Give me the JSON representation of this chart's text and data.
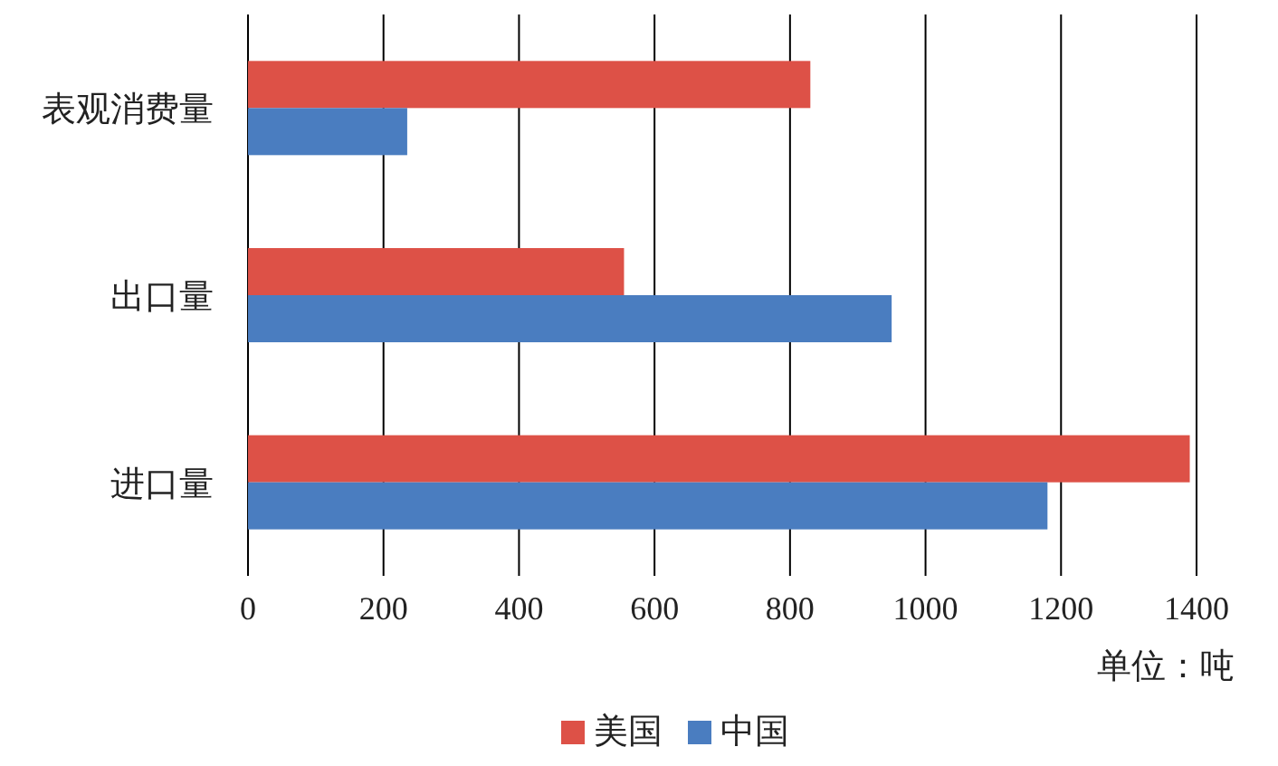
{
  "chart_data": {
    "type": "bar",
    "orientation": "horizontal",
    "categories": [
      "表观消费量",
      "出口量",
      "进口量"
    ],
    "series": [
      {
        "name": "美国",
        "color": "#dd5147",
        "values": [
          830,
          555,
          1390
        ]
      },
      {
        "name": "中国",
        "color": "#4a7dc0",
        "values": [
          235,
          950,
          1180
        ]
      }
    ],
    "xlim": [
      0,
      1400
    ],
    "xticks": [
      0,
      200,
      400,
      600,
      800,
      1000,
      1200,
      1400
    ],
    "xlabel": "单位：吨",
    "grid": "x",
    "legend": "bottom"
  }
}
